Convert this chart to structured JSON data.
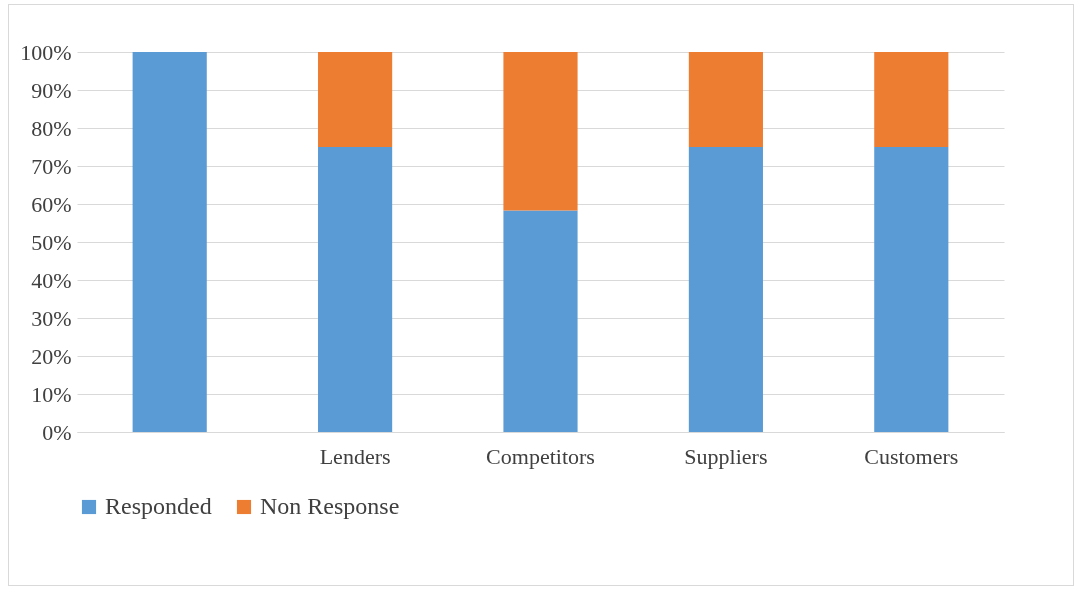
{
  "chart_data": {
    "type": "bar",
    "stacked": true,
    "categories": [
      null,
      "Lenders",
      "Competitors",
      "Suppliers",
      "Customers"
    ],
    "series": [
      {
        "name": "Responded",
        "color": "#5b9bd5",
        "values": [
          100,
          75,
          58.3,
          75,
          75
        ]
      },
      {
        "name": "Non Response",
        "color": "#ed7d31",
        "values": [
          0,
          25,
          41.7,
          25,
          25
        ]
      }
    ],
    "ylim": [
      0,
      100
    ],
    "yticks": [
      {
        "value": 0,
        "label": "0%"
      },
      {
        "value": 10,
        "label": "10%"
      },
      {
        "value": 20,
        "label": "20%"
      },
      {
        "value": 30,
        "label": "30%"
      },
      {
        "value": 40,
        "label": "40%"
      },
      {
        "value": 50,
        "label": "50%"
      },
      {
        "value": 60,
        "label": "60%"
      },
      {
        "value": 70,
        "label": "70%"
      },
      {
        "value": 80,
        "label": "80%"
      },
      {
        "value": 90,
        "label": "90%"
      },
      {
        "value": 100,
        "label": "100%"
      }
    ],
    "grid": "y",
    "legend": "bottom"
  }
}
